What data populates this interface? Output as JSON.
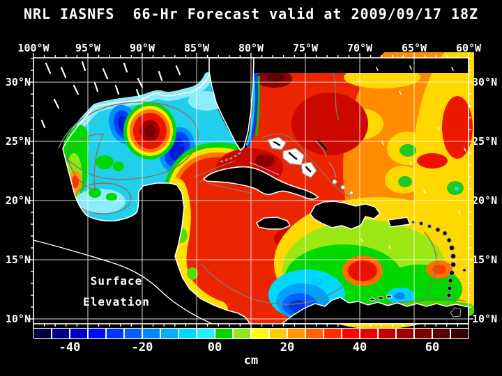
{
  "title": "NRL IASNFS  66-Hr Forecast valid at 2009/09/17 18Z",
  "map": {
    "overlay_label": {
      "line1": "Surface",
      "line2": "Elevation"
    },
    "x_axis": {
      "labels": [
        "100°W",
        "95°W",
        "90°W",
        "85°W",
        "80°W",
        "75°W",
        "70°W",
        "65°W",
        "60°W"
      ]
    },
    "y_axis": {
      "labels": [
        "30°N",
        "25°N",
        "20°N",
        "15°N",
        "10°N"
      ]
    },
    "frame_color": "#ffffff",
    "grid_color": "#ffffff",
    "land_color": "#000000",
    "coastline_color": "#ffffff",
    "contour_line_color": "#8a7363"
  },
  "colorbar": {
    "unit": "cm",
    "tick_labels": [
      "-40",
      "-20",
      "00",
      "20",
      "40",
      "60"
    ],
    "tick_values": [
      -40,
      -20,
      0,
      20,
      40,
      60
    ],
    "range_min": -50,
    "range_max": 70,
    "cell_step": 5,
    "cell_colors": [
      "#000041",
      "#000083",
      "#0000c4",
      "#0008ff",
      "#0038ff",
      "#0060ff",
      "#0088ff",
      "#00b0ff",
      "#00d8ff",
      "#20f0ff",
      "#00d800",
      "#90e818",
      "#ffff00",
      "#ffcc00",
      "#ff9800",
      "#ff6400",
      "#ff3000",
      "#ff0400",
      "#e60000",
      "#c30000",
      "#a00000",
      "#7d0000",
      "#5a0000",
      "#370000"
    ]
  }
}
